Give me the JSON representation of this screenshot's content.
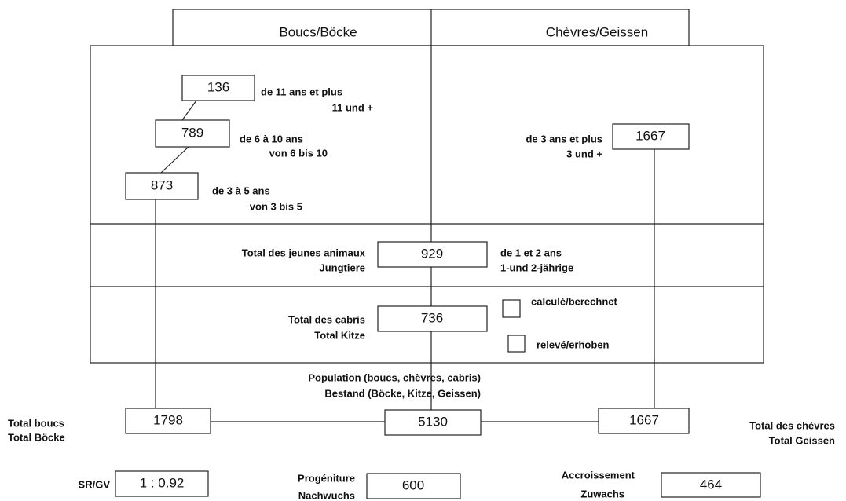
{
  "header": {
    "bucks": "Boucs/Böcke",
    "goats": "Chèvres/Geissen"
  },
  "bucks": [
    {
      "value": 136,
      "fr": "de 11 ans et plus",
      "de": "11 und +"
    },
    {
      "value": 789,
      "fr": "de 6 à 10 ans",
      "de": "von 6 bis 10"
    },
    {
      "value": 873,
      "fr": "de 3 à 5 ans",
      "de": "von 3 bis 5"
    }
  ],
  "goats": {
    "value": 1667,
    "fr": "de 3 ans et plus",
    "de": "3 und +"
  },
  "young": {
    "label_fr": "Total des jeunes animaux",
    "label_de": "Jungtiere",
    "value": 929,
    "age_fr": "de 1 et 2 ans",
    "age_de": "1-und 2-jährige"
  },
  "kids": {
    "label_fr": "Total des cabris",
    "label_de": "Total Kitze",
    "value": 736
  },
  "legend": {
    "calculated": "calculé/berechnet",
    "measured": "relevé/erhoben"
  },
  "population": {
    "fr": "Population (boucs, chèvres, cabris)",
    "de": "Bestand (Böcke, Kitze, Geissen)"
  },
  "totals": {
    "bucks": {
      "fr": "Total boucs",
      "de": "Total Böcke",
      "value": 1798
    },
    "all": {
      "value": 5130
    },
    "goats": {
      "fr": "Total des chèvres",
      "de": "Total Geissen",
      "value": 1667
    }
  },
  "ratios": {
    "sex_ratio": {
      "label": "SR/GV",
      "value": "1 : 0.92"
    },
    "offspring": {
      "fr": "Progéniture",
      "de": "Nachwuchs",
      "value": 600
    },
    "growth": {
      "fr": "Accroissement",
      "de": "Zuwachs",
      "value": 464
    }
  }
}
